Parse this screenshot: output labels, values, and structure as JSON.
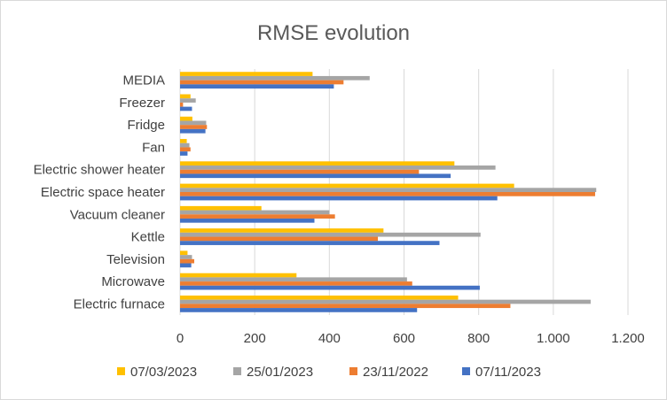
{
  "chart_data": {
    "type": "bar",
    "orientation": "horizontal",
    "title": "RMSE evolution",
    "xlabel": "",
    "ylabel": "",
    "xlim": [
      0,
      1200
    ],
    "x_ticks": [
      0,
      200,
      400,
      600,
      800,
      1000,
      1200
    ],
    "x_tick_labels": [
      "0",
      "200",
      "400",
      "600",
      "800",
      "1.000",
      "1.200"
    ],
    "grid": true,
    "legend_position": "bottom",
    "categories": [
      "MEDIA",
      "Freezer",
      "Fridge",
      "Fan",
      "Electric shower heater",
      "Electric space heater",
      "Vacuum cleaner",
      "Kettle",
      "Television",
      "Microwave",
      "Electric furnace"
    ],
    "series": [
      {
        "name": "07/03/2023",
        "color": "#ffc000",
        "values": [
          355,
          28,
          33,
          18,
          735,
          895,
          218,
          545,
          20,
          312,
          745
        ]
      },
      {
        "name": "25/01/2023",
        "color": "#a5a5a5",
        "values": [
          508,
          42,
          70,
          25,
          845,
          1115,
          400,
          805,
          32,
          608,
          1100
        ]
      },
      {
        "name": "23/11/2022",
        "color": "#ed7d31",
        "values": [
          438,
          8,
          72,
          28,
          640,
          1112,
          415,
          530,
          38,
          622,
          885
        ]
      },
      {
        "name": "07/11/2023",
        "color": "#4472c4",
        "values": [
          412,
          32,
          68,
          20,
          725,
          850,
          360,
          695,
          30,
          803,
          635
        ]
      }
    ]
  }
}
